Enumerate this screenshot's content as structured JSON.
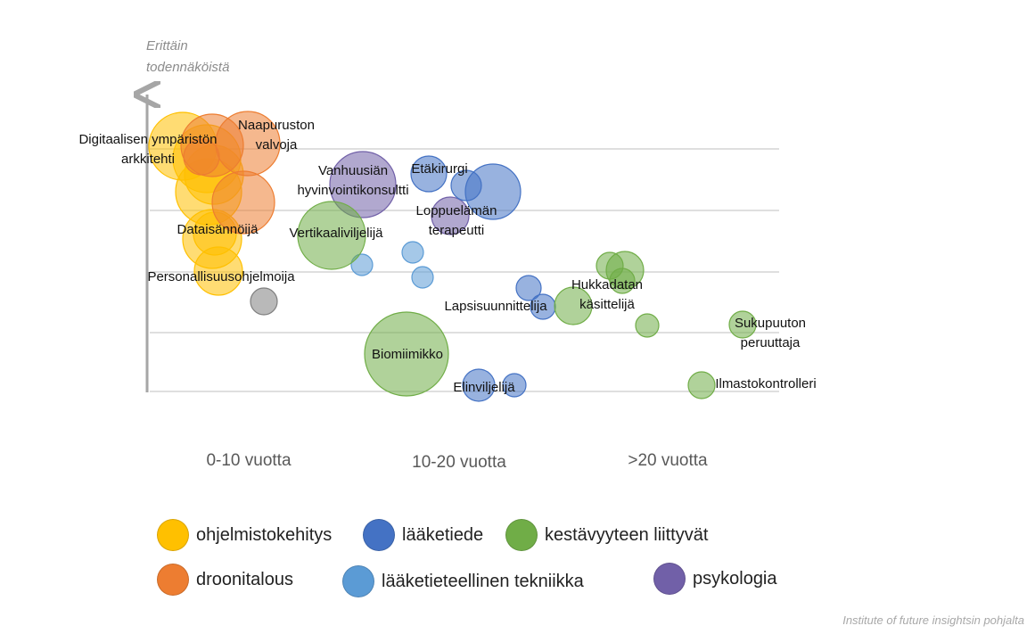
{
  "chart_data": {
    "type": "scatter",
    "subtype": "bubble",
    "y_axis_title": [
      "Erittäin",
      "todennäköistä"
    ],
    "x_categories": [
      "0-10 vuotta",
      "10-20 vuotta",
      ">20 vuotta"
    ],
    "grid": "horizontal",
    "legend_placement": "bottom",
    "series": [
      {
        "name": "ohjelmistokehitys",
        "color": "#ffc000"
      },
      {
        "name": "lääketiede",
        "color": "#4472c4"
      },
      {
        "name": "kestävyyteen liittyvät",
        "color": "#70ad47"
      },
      {
        "name": "droonitalous",
        "color": "#ed7d31"
      },
      {
        "name": "lääketieteellinen tekniikka",
        "color": "#5b9bd5"
      },
      {
        "name": "psykologia",
        "color": "#7160a8"
      }
    ],
    "labels": [
      {
        "id": "digitaalisen",
        "lines": [
          "Digitaalisen ympäristön",
          "arkkitehti"
        ]
      },
      {
        "id": "naapuruston",
        "lines": [
          "Naapuruston",
          "valvoja"
        ]
      },
      {
        "id": "dataisannoija",
        "lines": [
          "Dataisännöijä"
        ]
      },
      {
        "id": "personallisuus",
        "lines": [
          "Personallisuusohjelmoija"
        ]
      },
      {
        "id": "vanhuusian",
        "lines": [
          "Vanhuusiän",
          "hyvinvointikonsultti"
        ]
      },
      {
        "id": "etakirurgi",
        "lines": [
          "Etäkirurgi"
        ]
      },
      {
        "id": "loppuelaman",
        "lines": [
          "Loppuelämän",
          "terapeutti"
        ]
      },
      {
        "id": "vertikaali",
        "lines": [
          "Vertikaaliviljelijä"
        ]
      },
      {
        "id": "biomiimikko",
        "lines": [
          "Biomiimikko"
        ]
      },
      {
        "id": "elinviljelija",
        "lines": [
          "Elinviljelijä"
        ]
      },
      {
        "id": "lapsisuunnittelija",
        "lines": [
          "Lapsisuunnittelija"
        ]
      },
      {
        "id": "hukkadatan",
        "lines": [
          "Hukkadatan",
          "käsittelijä"
        ]
      },
      {
        "id": "sukupuuton",
        "lines": [
          "Sukupuuton",
          "peruuttaja"
        ]
      },
      {
        "id": "ilmastokontrolleri",
        "lines": [
          "Ilmastokontrolleri"
        ]
      }
    ],
    "bubbles": [
      {
        "series": "ohjelmistokehitys"
      },
      {
        "series": "ohjelmistokehitys"
      },
      {
        "series": "ohjelmistokehitys"
      },
      {
        "series": "ohjelmistokehitys"
      },
      {
        "series": "ohjelmistokehitys"
      },
      {
        "series": "ohjelmistokehitys"
      },
      {
        "series": "ohjelmistokehitys"
      },
      {
        "series": "droonitalous"
      },
      {
        "series": "droonitalous"
      },
      {
        "series": "droonitalous"
      },
      {
        "series": "droonitalous"
      },
      {
        "series": "other"
      },
      {
        "series": "psykologia"
      },
      {
        "series": "psykologia"
      },
      {
        "series": "lääketiede"
      },
      {
        "series": "lääketiede"
      },
      {
        "series": "lääketiede"
      },
      {
        "series": "lääketiede"
      },
      {
        "series": "lääketiede"
      },
      {
        "series": "lääketiede"
      },
      {
        "series": "lääketiede"
      },
      {
        "series": "lääketieteellinen tekniikka"
      },
      {
        "series": "lääketieteellinen tekniikka"
      },
      {
        "series": "lääketieteellinen tekniikka"
      },
      {
        "series": "kestävyyteen liittyvät"
      },
      {
        "series": "kestävyyteen liittyvät"
      },
      {
        "series": "kestävyyteen liittyvät"
      },
      {
        "series": "kestävyyteen liittyvät"
      },
      {
        "series": "kestävyyteen liittyvät"
      },
      {
        "series": "kestävyyteen liittyvät"
      },
      {
        "series": "kestävyyteen liittyvät"
      },
      {
        "series": "kestävyyteen liittyvät"
      },
      {
        "series": "kestävyyteen liittyvät"
      }
    ],
    "colors": {
      "other": "#7f7f7f"
    }
  },
  "source_note": "Institute of future insightsin pohjalta"
}
